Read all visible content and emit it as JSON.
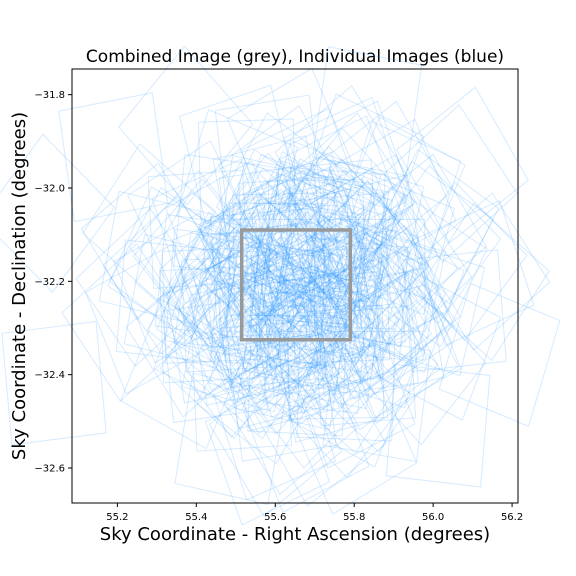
{
  "chart_data": {
    "type": "scatter",
    "title": "Combined Image (grey), Individual Images (blue)",
    "xlabel": "Sky Coordinate - Right Ascension (degrees)",
    "ylabel": "Sky Coordinate - Declination (degrees)",
    "xlim": [
      55.085,
      56.215
    ],
    "ylim": [
      -32.675,
      -31.745
    ],
    "x_ticks": [
      55.2,
      55.4,
      55.6,
      55.8,
      56.0,
      56.2
    ],
    "x_tick_labels": [
      "55.2",
      "55.4",
      "55.6",
      "55.8",
      "56.0",
      "56.2"
    ],
    "y_ticks": [
      -31.8,
      -32.0,
      -32.2,
      -32.4,
      -32.6
    ],
    "y_tick_labels": [
      "−31.8",
      "−32.0",
      "−32.2",
      "−32.4",
      "−32.6"
    ],
    "combined_image": {
      "corners": [
        [
          55.515,
          -32.09
        ],
        [
          55.79,
          -32.09
        ],
        [
          55.79,
          -32.325
        ],
        [
          55.515,
          -32.325
        ]
      ],
      "color": "#999999"
    },
    "individual_images": {
      "color": "#1e90ff",
      "count": 260,
      "center": [
        55.65,
        -32.21
      ],
      "footprint_size_deg": 0.24,
      "spread_ra_deg": 0.36,
      "spread_dec_deg": 0.27
    },
    "grid": false
  }
}
